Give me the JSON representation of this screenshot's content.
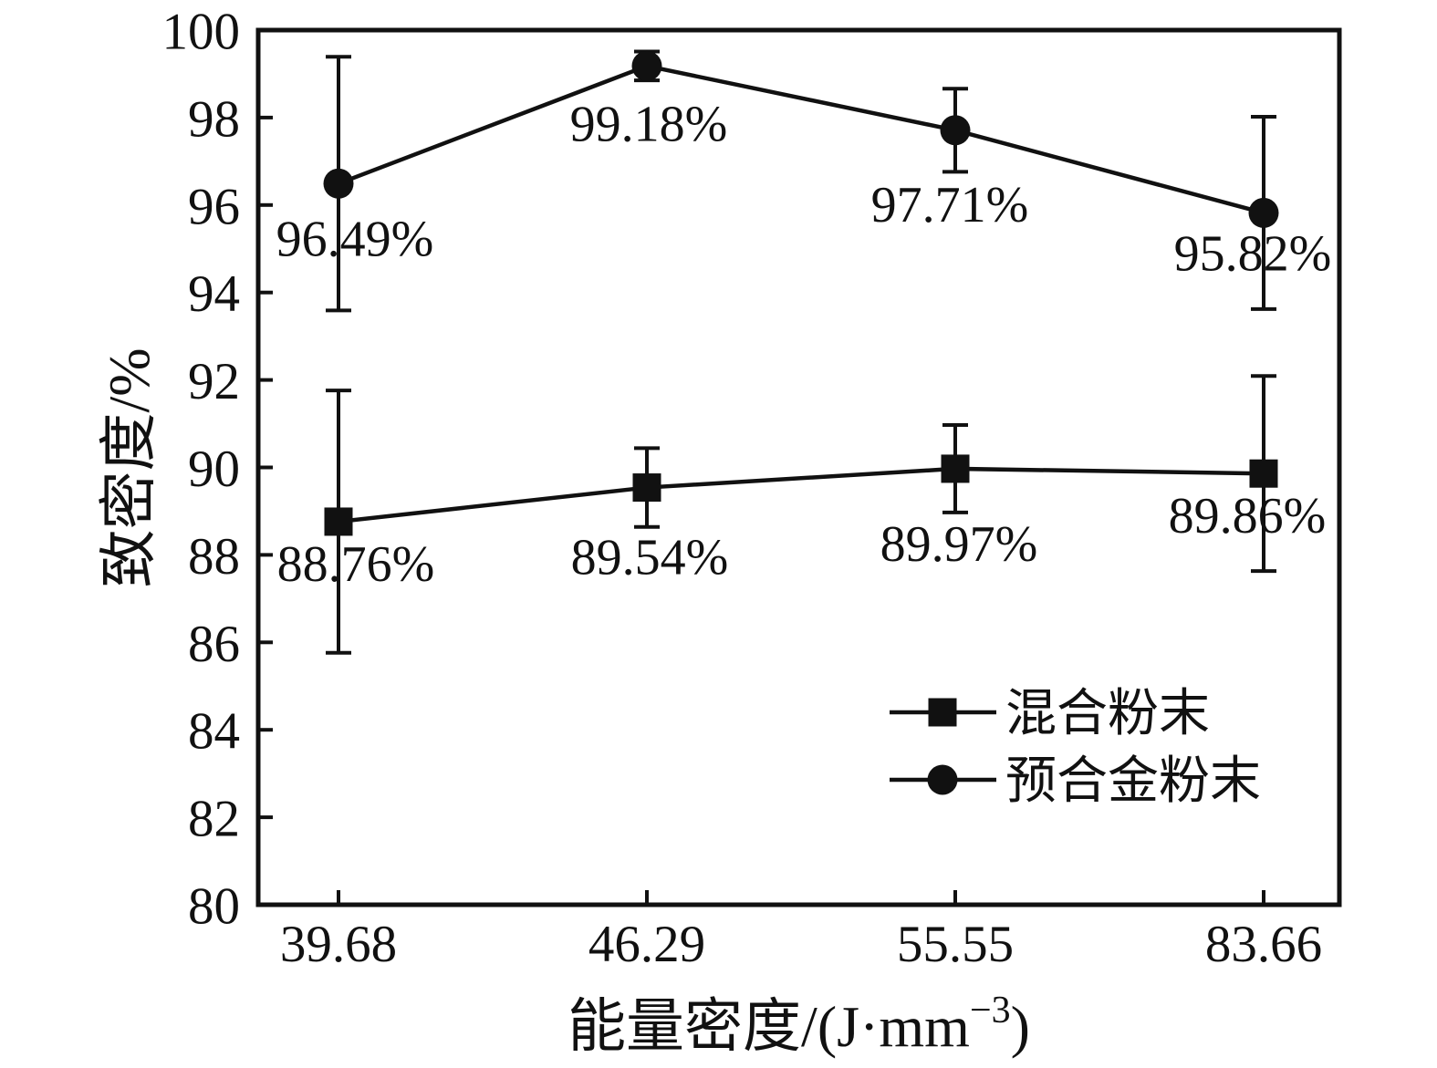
{
  "chart_data": {
    "type": "line",
    "title": "",
    "xlabel": "能量密度/(J·mm⁻³)",
    "xlabel_parts": {
      "base": "能量密度/(J·mm",
      "superscript": "−3",
      "suffix": ")"
    },
    "ylabel": "致密度/%",
    "categories": [
      "39.68",
      "46.29",
      "55.55",
      "83.66"
    ],
    "ylim": [
      80,
      100
    ],
    "ytick_step": 2,
    "yticks": [
      80,
      82,
      84,
      86,
      88,
      90,
      92,
      94,
      96,
      98,
      100
    ],
    "grid": false,
    "legend_position": "inside-right-middle",
    "color": "#111111",
    "background": "#ffffff",
    "series": [
      {
        "name": "混合粉末",
        "marker": "square",
        "values": [
          88.76,
          89.54,
          89.97,
          89.86
        ],
        "error_bars": [
          3.0,
          0.9,
          1.0,
          2.23
        ],
        "point_labels": [
          "88.76%",
          "89.54%",
          "89.97%",
          "89.86%"
        ]
      },
      {
        "name": "预合金粉末",
        "marker": "circle",
        "values": [
          96.49,
          99.18,
          97.71,
          95.82
        ],
        "error_bars": [
          2.9,
          0.33,
          0.95,
          2.2
        ],
        "point_labels": [
          "96.49%",
          "99.18%",
          "97.71%",
          "95.82%"
        ]
      }
    ]
  }
}
